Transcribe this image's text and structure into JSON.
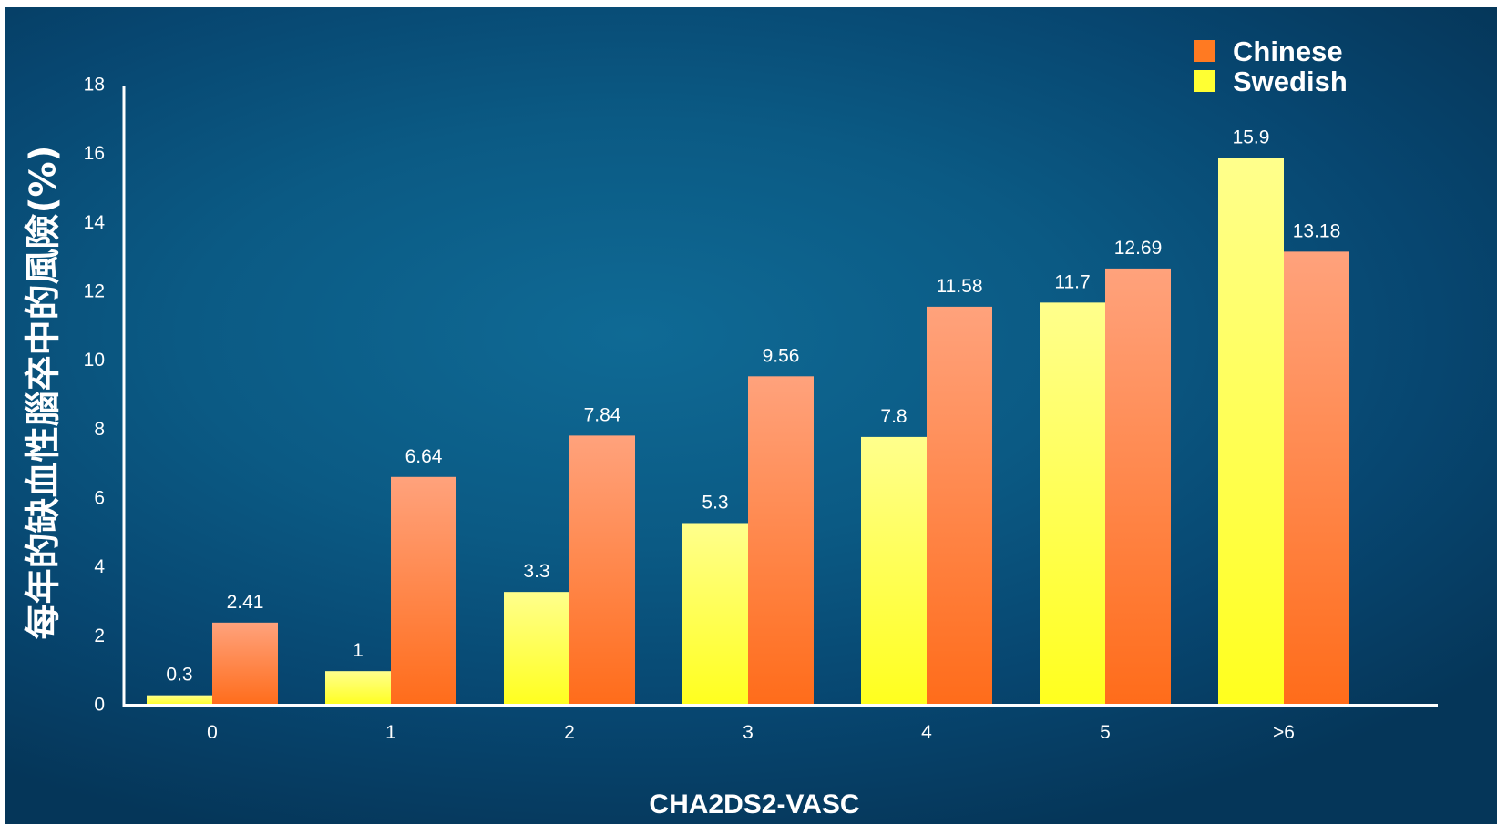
{
  "chart_data": {
    "type": "bar",
    "title": "",
    "xlabel": "CHA2DS2-VASC",
    "ylabel": "每年的缺血性腦卒中的風險(%)",
    "categories": [
      "0",
      "1",
      "2",
      "3",
      "4",
      "5",
      ">6"
    ],
    "ylim": [
      0,
      18
    ],
    "yticks": [
      0,
      2,
      4,
      6,
      8,
      10,
      12,
      14,
      16,
      18
    ],
    "grid": false,
    "legend_position": "top-right",
    "series": [
      {
        "name": "Swedish",
        "color": "#ffff33",
        "values": [
          0.3,
          1,
          3.3,
          5.3,
          7.8,
          11.7,
          15.9
        ],
        "labels": [
          "0.3",
          "1",
          "3.3",
          "5.3",
          "7.8",
          "11.7",
          "15.9"
        ]
      },
      {
        "name": "Chinese",
        "color": "#ff7a22",
        "values": [
          2.41,
          6.64,
          7.84,
          9.56,
          11.58,
          12.69,
          13.18
        ],
        "labels": [
          "2.41",
          "6.64",
          "7.84",
          "9.56",
          "11.58",
          "12.69",
          "13.18"
        ]
      }
    ],
    "legend_order": [
      "Chinese",
      "Swedish"
    ]
  }
}
